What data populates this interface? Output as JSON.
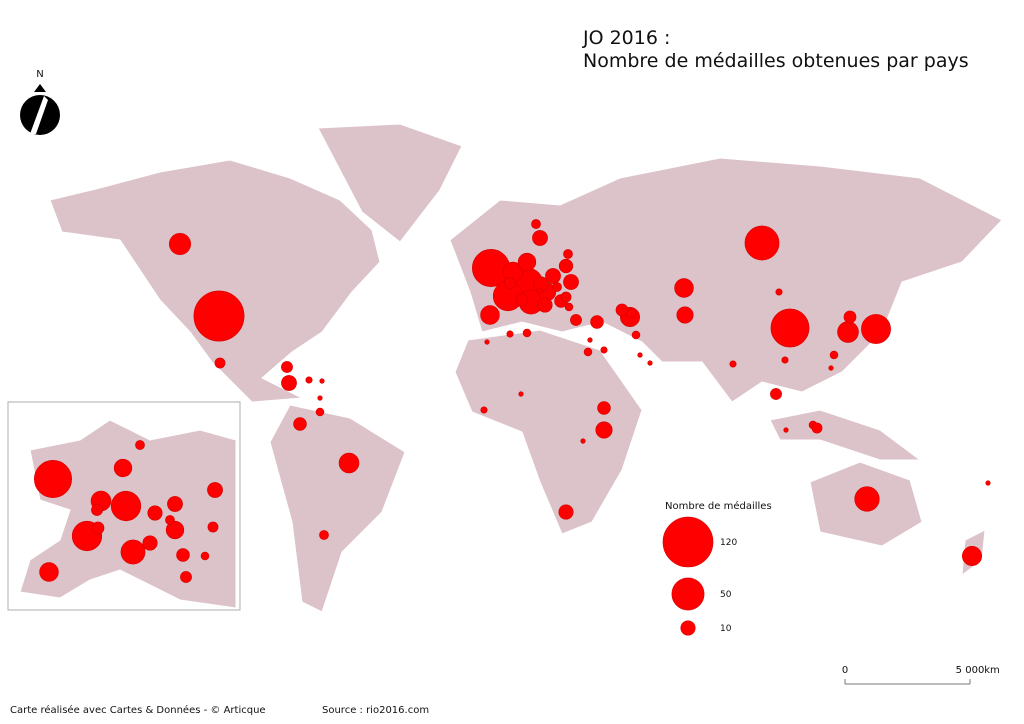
{
  "title": [
    "JO 2016 :",
    "Nombre de médailles obtenues par pays"
  ],
  "north": "N",
  "symbols": {
    "values": [
      121,
      70,
      56,
      67,
      42,
      42,
      41,
      29,
      28,
      19,
      22,
      19,
      18,
      21,
      17,
      17,
      15,
      11,
      6,
      13,
      13,
      18,
      11,
      11,
      15,
      11,
      9,
      8,
      8,
      10,
      6,
      3,
      8,
      10,
      6,
      8,
      7,
      3,
      2,
      2,
      1,
      3,
      7,
      2,
      4,
      3,
      5,
      3,
      2,
      1,
      3,
      1,
      2,
      1,
      2,
      1,
      1,
      1,
      5,
      1,
      4,
      4,
      10,
      4,
      1,
      7,
      6,
      5,
      3,
      4,
      2,
      1,
      1,
      1
    ]
  },
  "legend": {
    "title": "Nombre de médailles",
    "values": [
      120,
      50,
      10
    ]
  },
  "scale": {
    "ticks": [
      0,
      {
        "value": 5000,
        "label": "5 000"
      }
    ],
    "unit": "km"
  },
  "credits": "Carte réalisée avec Cartes & Données - © Articque",
  "source": "Source : rio2016.com"
}
